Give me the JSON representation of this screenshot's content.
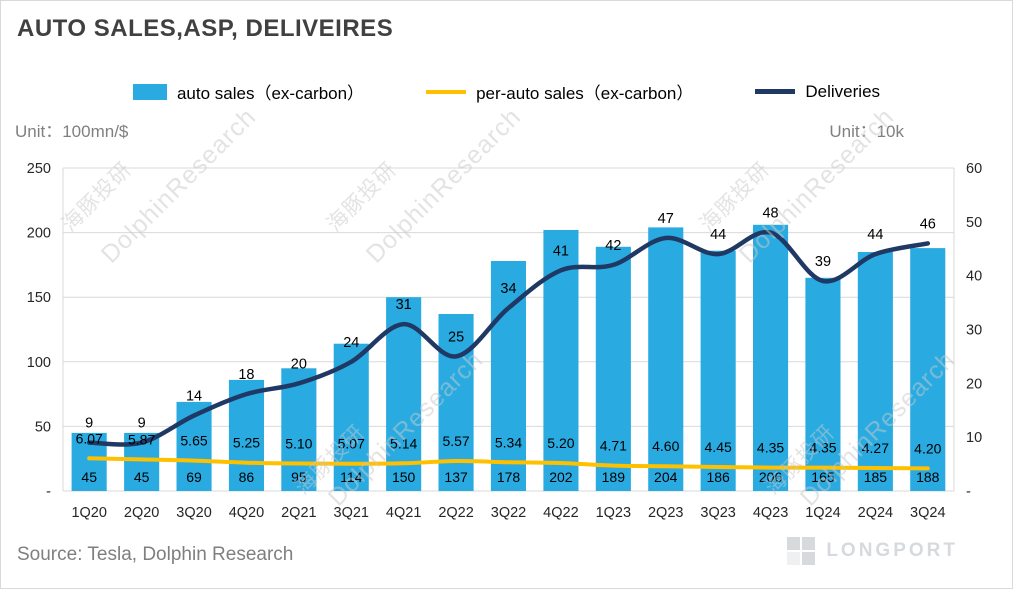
{
  "title": "AUTO SALES,ASP, DELIVEIRES",
  "units": {
    "left": "Unit：100mn/$",
    "right": "Unit：10k"
  },
  "legend": [
    {
      "label": "auto sales（ex-carbon）"
    },
    {
      "label": "per-auto sales（ex-carbon）"
    },
    {
      "label": "Deliveries"
    }
  ],
  "source": "Source: Tesla, Dolphin Research",
  "watermark": {
    "en": "DolphinResearch",
    "zh": "海豚投研"
  },
  "logo_text": "LONGPORT",
  "colors": {
    "bar": "#29ABE2",
    "asp_line": "#FFC000",
    "deliveries_line": "#1F3864",
    "grid": "#D9D9D9",
    "tick_text": "#262626",
    "label_text": "#000000"
  },
  "chart_data": {
    "type": "bar",
    "title": "AUTO SALES,ASP, DELIVEIRES",
    "categories": [
      "1Q20",
      "2Q20",
      "3Q20",
      "4Q20",
      "2Q21",
      "3Q21",
      "4Q21",
      "2Q22",
      "3Q22",
      "4Q22",
      "1Q23",
      "2Q23",
      "3Q23",
      "4Q23",
      "1Q24",
      "2Q24",
      "3Q24"
    ],
    "series": [
      {
        "name": "auto sales (ex-carbon)",
        "type": "bar",
        "axis": "left",
        "values": [
          45,
          45,
          69,
          86,
          95,
          114,
          150,
          137,
          178,
          202,
          189,
          204,
          186,
          206,
          165,
          185,
          188
        ]
      },
      {
        "name": "per-auto sales (ex-carbon)",
        "type": "line",
        "axis": "right",
        "values": [
          6.07,
          5.87,
          5.65,
          5.25,
          5.1,
          5.07,
          5.14,
          5.57,
          5.34,
          5.2,
          4.71,
          4.6,
          4.45,
          4.35,
          4.35,
          4.27,
          4.2
        ],
        "labels": [
          "6.07",
          "5.87",
          "5.65",
          "5.25",
          "5.10",
          "5.07",
          "5.14",
          "5.57",
          "5.34",
          "5.20",
          "4.71",
          "4.60",
          "4.45",
          "4.35",
          "4.35",
          "4.27",
          "4.20"
        ]
      },
      {
        "name": "Deliveries",
        "type": "line",
        "axis": "right",
        "values": [
          9,
          9,
          14,
          18,
          20,
          24,
          31,
          25,
          34,
          41,
          42,
          47,
          44,
          48,
          39,
          44,
          46
        ]
      }
    ],
    "left_axis": {
      "label": "Unit：100mn/$",
      "min": 0,
      "max": 250,
      "step": 50,
      "tick_labels_bottom_up": [
        "-",
        "50",
        "100",
        "150",
        "200",
        "250"
      ]
    },
    "right_axis": {
      "label": "Unit：10k",
      "min": 0,
      "max": 60,
      "step": 10,
      "tick_labels_bottom_up": [
        "-",
        "10",
        "20",
        "30",
        "40",
        "50",
        "60"
      ]
    },
    "grid": true,
    "legend_position": "top"
  }
}
